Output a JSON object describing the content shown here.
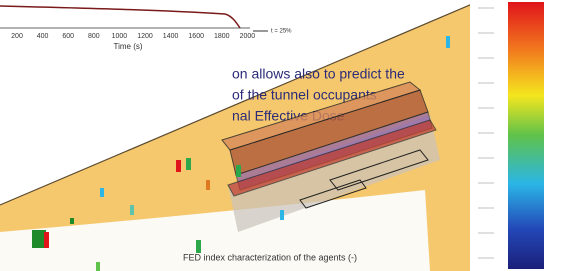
{
  "chart_fragment": {
    "x_ticks": [
      200,
      400,
      600,
      800,
      1000,
      1200,
      1400,
      1600,
      1800,
      2000
    ],
    "x_label": "Time (s)",
    "legend": "t = 25%"
  },
  "caption_lines": [
    "on allows also to predict the",
    "of the tunnel occupants",
    "nal Effective Dose"
  ],
  "colorbar_label": "FED index characterization of the agents (-)"
}
